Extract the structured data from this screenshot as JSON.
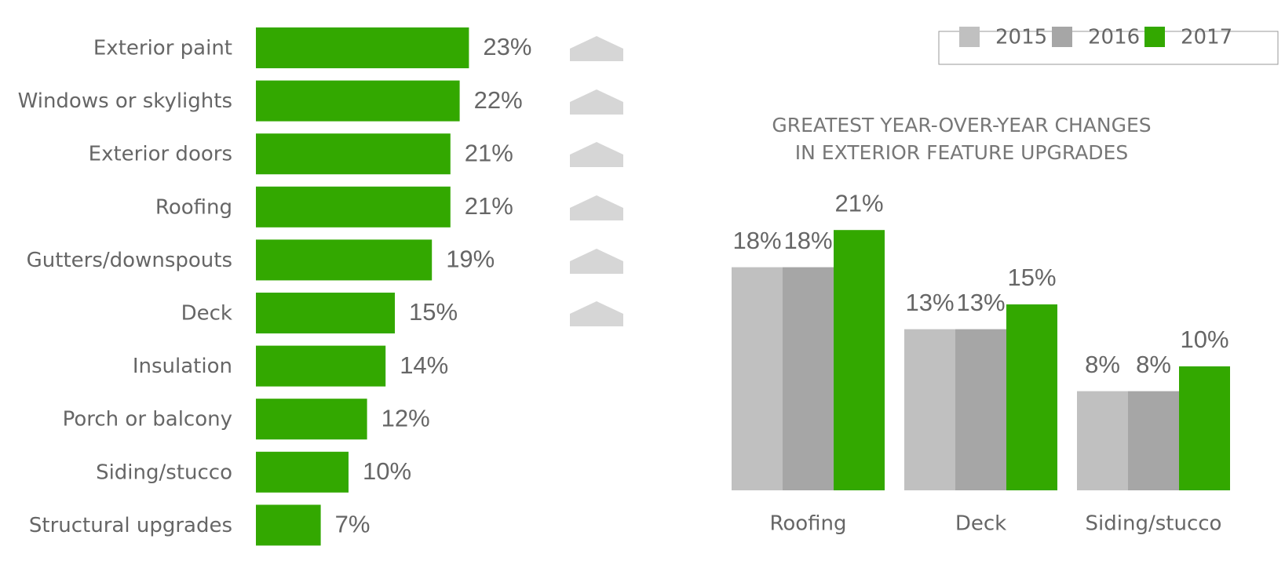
{
  "chart_data": [
    {
      "type": "bar",
      "horizontal": true,
      "color": "#33a800",
      "categories": [
        "Exterior paint",
        "Windows or skylights",
        "Exterior doors",
        "Roofing",
        "Gutters/downspouts",
        "Deck",
        "Insulation",
        "Porch or balcony",
        "Siding/stucco",
        "Structural upgrades"
      ],
      "values": [
        23,
        22,
        21,
        21,
        19,
        15,
        14,
        12,
        10,
        7
      ],
      "value_labels": [
        "23%",
        "22%",
        "21%",
        "21%",
        "19%",
        "15%",
        "14%",
        "12%",
        "10%",
        "7%"
      ]
    },
    {
      "type": "bar",
      "horizontal": false,
      "title": [
        "GREATEST YEAR-OVER-YEAR CHANGES",
        "IN EXTERIOR FEATURE UPGRADES"
      ],
      "categories": [
        "Roofing",
        "Deck",
        "Siding/stucco"
      ],
      "series": [
        {
          "name": "2015",
          "color": "#c0c0c0",
          "values": [
            18,
            13,
            8
          ],
          "value_labels": [
            "18%",
            "13%",
            "8%"
          ]
        },
        {
          "name": "2016",
          "color": "#a6a6a6",
          "values": [
            18,
            13,
            8
          ],
          "value_labels": [
            "18%",
            "13%",
            "8%"
          ]
        },
        {
          "name": "2017",
          "color": "#33a800",
          "values": [
            21,
            15,
            10
          ],
          "value_labels": [
            "21%",
            "15%",
            "10%"
          ]
        }
      ]
    }
  ]
}
